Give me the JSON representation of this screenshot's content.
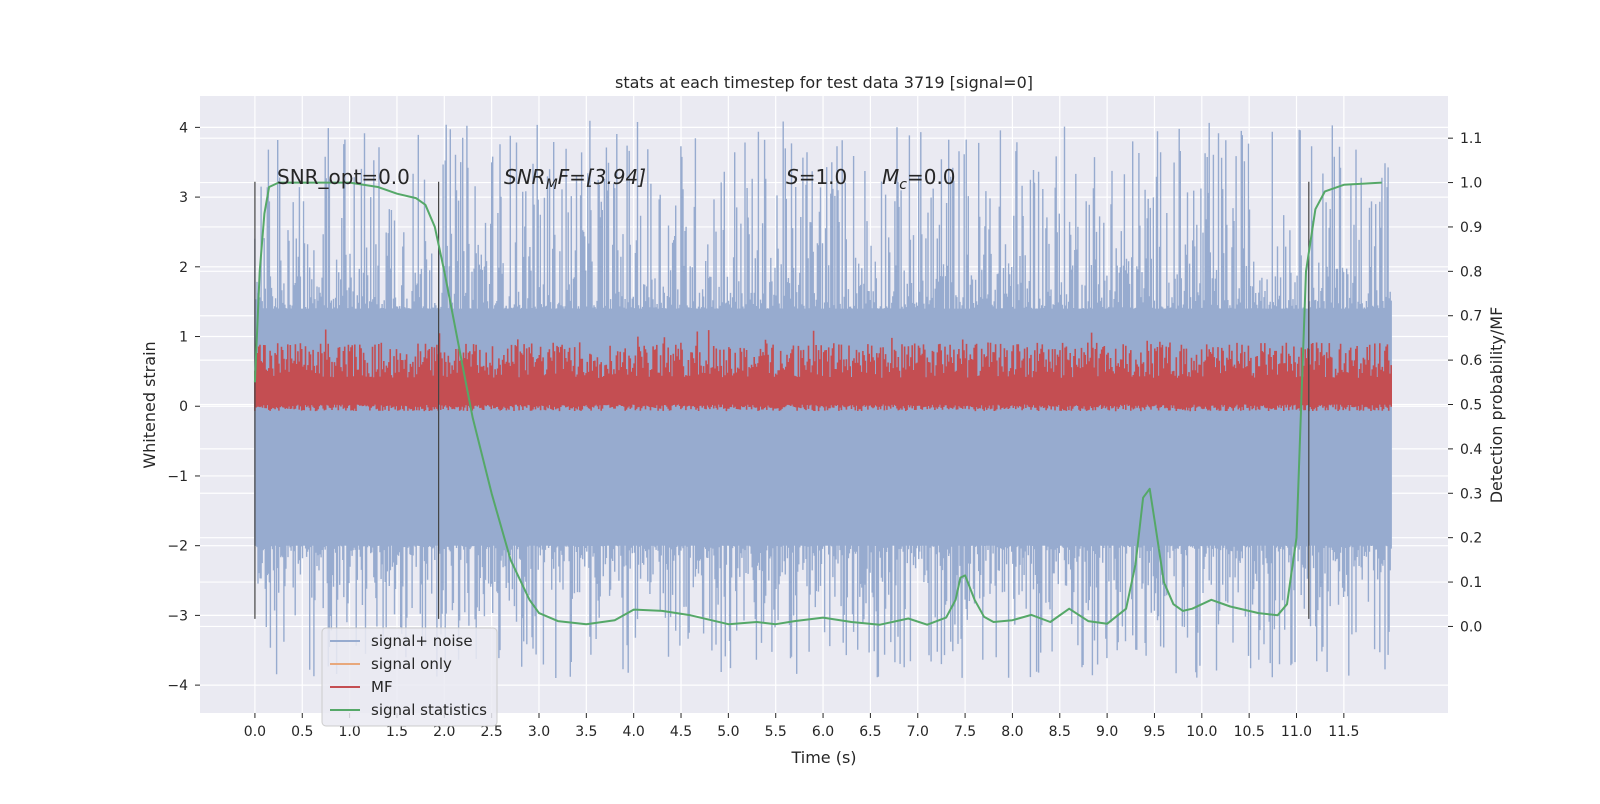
{
  "chart_data": {
    "type": "line",
    "title": "stats at each timestep for test data 3719 [signal=0]",
    "xlabel": "Time (s)",
    "ylabel": "Whitened strain",
    "ylabel_right": "Detection probability/MF",
    "xlim": [
      -0.58,
      12.6
    ],
    "ylim": [
      -4.4,
      4.45
    ],
    "ylim_right": [
      -0.195,
      1.195
    ],
    "x_ticks": [
      "0.0",
      "0.5",
      "1.0",
      "1.5",
      "2.0",
      "2.5",
      "3.0",
      "3.5",
      "4.0",
      "4.5",
      "5.0",
      "5.5",
      "6.0",
      "6.5",
      "7.0",
      "7.5",
      "8.0",
      "8.5",
      "9.0",
      "9.5",
      "10.0",
      "10.5",
      "11.0",
      "11.5"
    ],
    "y_ticks": [
      "4",
      "3",
      "2",
      "1",
      "0",
      "−1",
      "−2",
      "−3",
      "−4"
    ],
    "y_ticks_right": [
      "1.1",
      "1.0",
      "0.9",
      "0.8",
      "0.7",
      "0.6",
      "0.5",
      "0.4",
      "0.3",
      "0.2",
      "0.1",
      "0.0"
    ],
    "grid": true,
    "legend_position": "lower-left",
    "colors": {
      "noise": "#97abcf",
      "signal_only": "#e8a87c",
      "mf": "#c44e52",
      "stats": "#55a868",
      "background": "#eaeaf2",
      "vline": "#444444"
    },
    "annotations": {
      "snr_opt": "SNR_opt=0.0",
      "snr_mf_main": "SNR",
      "snr_mf_sub": "M",
      "snr_mf_rest": "F=[3.94]",
      "s_symbol": "S",
      "s_value": "=1.0",
      "mc_symbol": "M",
      "mc_sub": "c",
      "mc_value": "=0.0"
    },
    "vertical_lines_x": [
      0.0,
      1.94,
      11.13
    ],
    "series": [
      {
        "name": "signal+ noise",
        "description_range": "dense noise trace from 0 to 12 s",
        "t_start": 0.0,
        "t_end": 12.0,
        "envelope_low": -2.0,
        "envelope_high": 1.4,
        "spike_min": -3.9,
        "spike_max": 4.1
      },
      {
        "name": "signal only",
        "values": []
      },
      {
        "name": "MF",
        "t_start": 0.0,
        "t_end": 12.0,
        "band_low": 0.5,
        "band_high": 0.62,
        "spike_max": 0.67
      },
      {
        "name": "signal statistics",
        "x": [
          0.0,
          0.05,
          0.1,
          0.15,
          0.25,
          0.5,
          1.0,
          1.3,
          1.5,
          1.7,
          1.8,
          1.9,
          2.0,
          2.1,
          2.2,
          2.3,
          2.5,
          2.7,
          2.9,
          3.0,
          3.2,
          3.5,
          3.8,
          4.0,
          4.3,
          4.6,
          5.0,
          5.3,
          5.5,
          5.7,
          6.0,
          6.3,
          6.6,
          6.9,
          7.1,
          7.3,
          7.4,
          7.45,
          7.5,
          7.6,
          7.7,
          7.8,
          8.0,
          8.2,
          8.4,
          8.6,
          8.8,
          9.0,
          9.2,
          9.3,
          9.38,
          9.45,
          9.5,
          9.6,
          9.7,
          9.8,
          9.9,
          10.1,
          10.3,
          10.6,
          10.8,
          10.9,
          11.0,
          11.05,
          11.1,
          11.2,
          11.3,
          11.5,
          11.9
        ],
        "values": [
          0.55,
          0.8,
          0.93,
          0.99,
          1.0,
          1.0,
          1.0,
          0.99,
          0.975,
          0.965,
          0.95,
          0.9,
          0.8,
          0.69,
          0.58,
          0.47,
          0.3,
          0.15,
          0.06,
          0.03,
          0.012,
          0.005,
          0.014,
          0.038,
          0.035,
          0.025,
          0.005,
          0.01,
          0.005,
          0.012,
          0.02,
          0.01,
          0.004,
          0.018,
          0.004,
          0.02,
          0.06,
          0.11,
          0.115,
          0.06,
          0.022,
          0.01,
          0.014,
          0.026,
          0.01,
          0.04,
          0.012,
          0.006,
          0.04,
          0.14,
          0.29,
          0.31,
          0.24,
          0.1,
          0.05,
          0.035,
          0.04,
          0.06,
          0.045,
          0.03,
          0.025,
          0.05,
          0.2,
          0.5,
          0.8,
          0.94,
          0.98,
          0.995,
          1.0
        ]
      }
    ]
  },
  "legend": [
    {
      "label": "signal+ noise"
    },
    {
      "label": "signal only"
    },
    {
      "label": "MF"
    },
    {
      "label": "signal statistics"
    }
  ]
}
